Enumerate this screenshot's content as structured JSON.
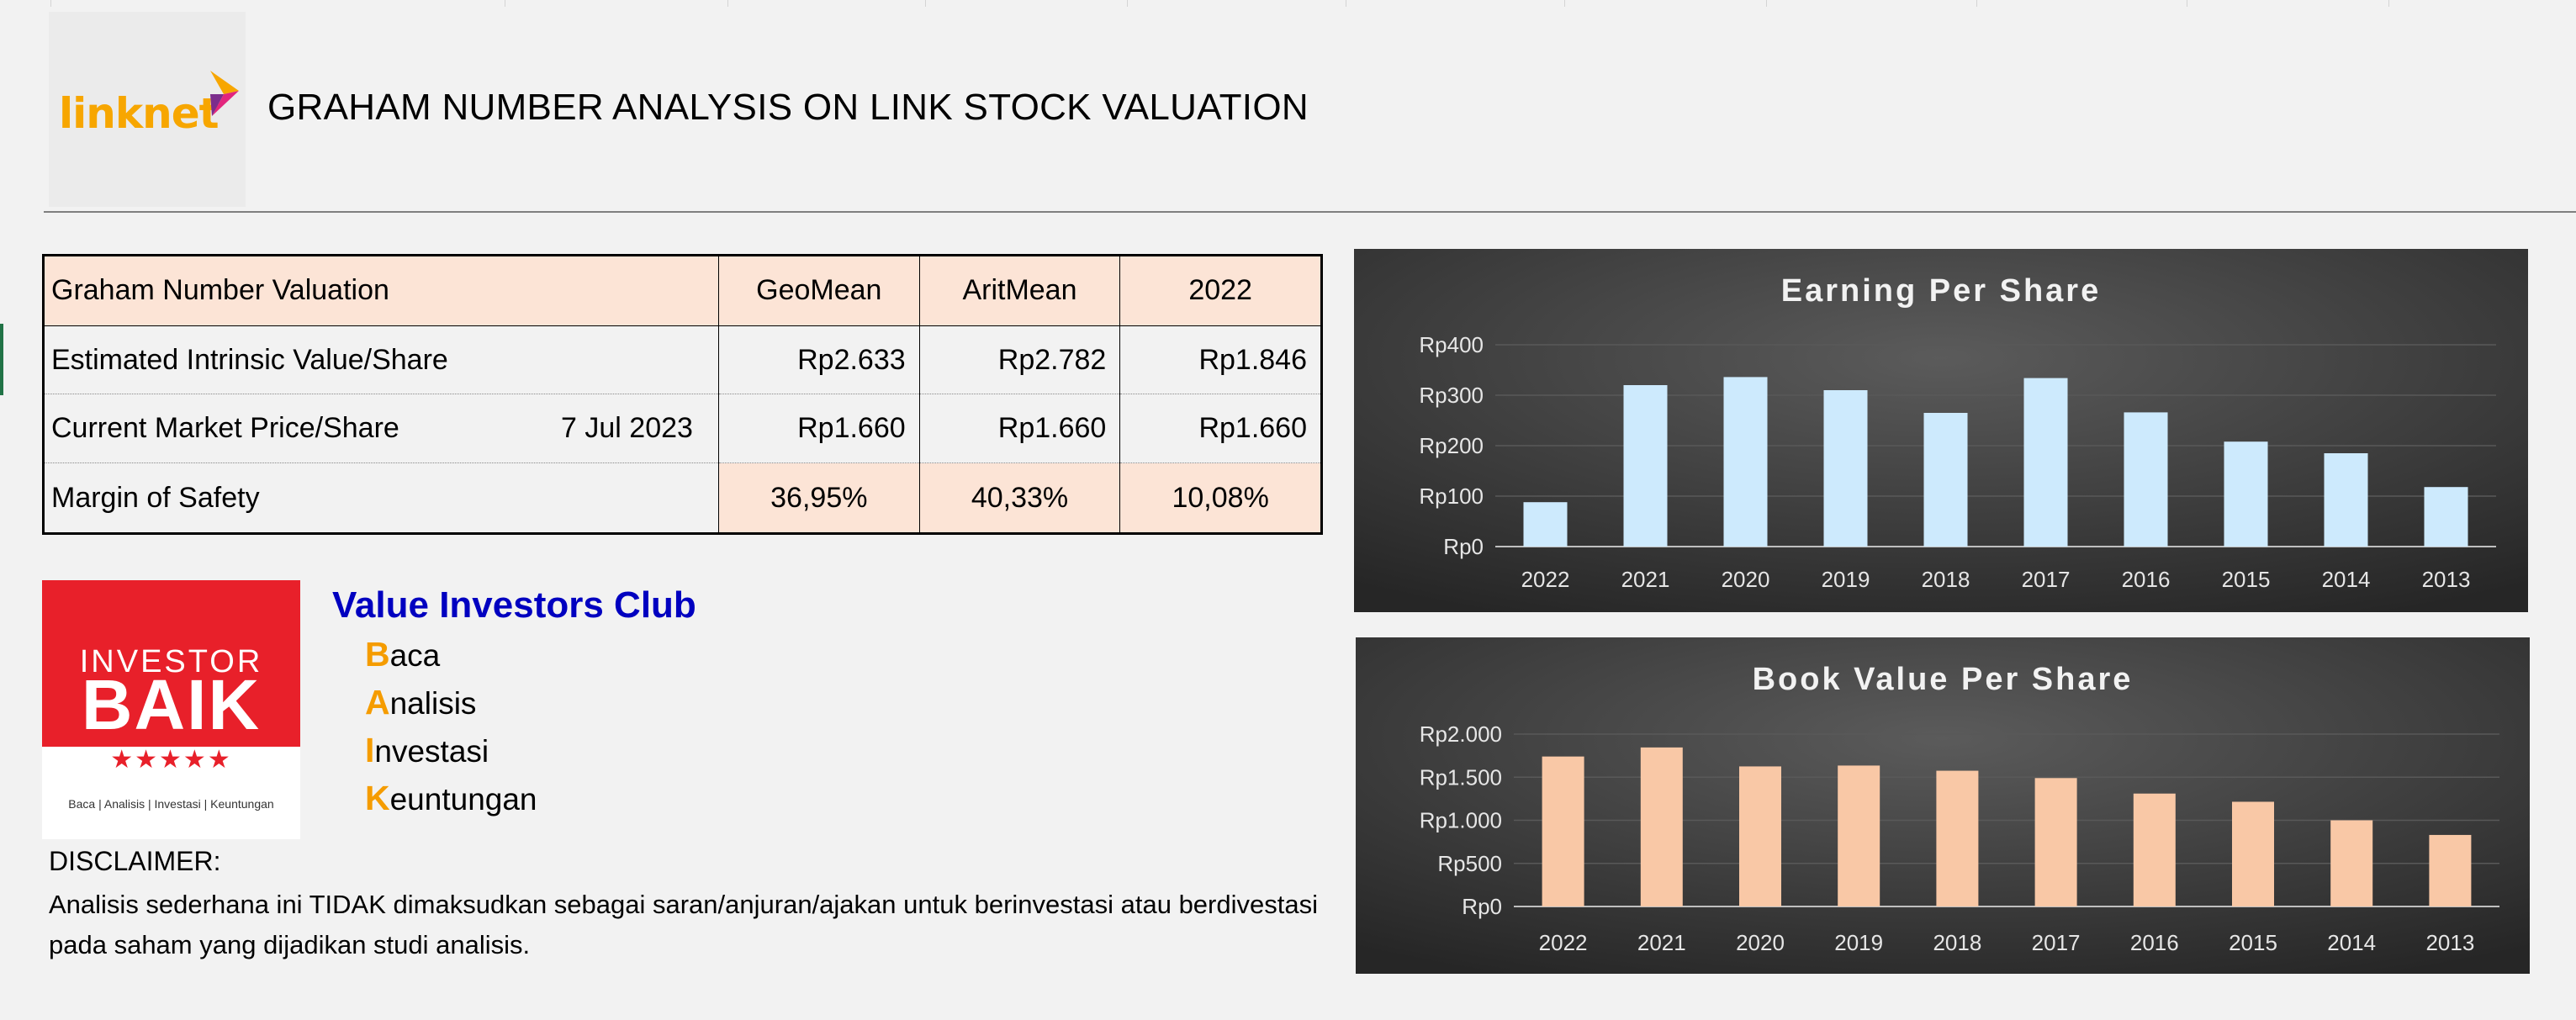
{
  "header": {
    "title": "GRAHAM NUMBER ANALYSIS ON LINK STOCK VALUATION",
    "logo_text": "linknet"
  },
  "valuation_table": {
    "header": [
      "Graham Number Valuation",
      "GeoMean",
      "AritMean",
      "2022"
    ],
    "rows": [
      {
        "label": "Estimated Intrinsic Value/Share",
        "date": "",
        "values": [
          "Rp2.633",
          "Rp2.782",
          "Rp1.846"
        ]
      },
      {
        "label": "Current Market Price/Share",
        "date": "7 Jul 2023",
        "values": [
          "Rp1.660",
          "Rp1.660",
          "Rp1.660"
        ]
      },
      {
        "label": "Margin of Safety",
        "date": "",
        "values": [
          "36,95%",
          "40,33%",
          "10,08%"
        ]
      }
    ]
  },
  "investor_logo": {
    "line1": "INVESTOR",
    "line2": "BAIK",
    "stars": "★★★★★",
    "tagline": "Baca | Analisis | Investasi | Keuntungan"
  },
  "club": {
    "title": "Value Investors Club",
    "items": [
      {
        "initial": "B",
        "rest": "aca"
      },
      {
        "initial": "A",
        "rest": "nalisis"
      },
      {
        "initial": "I",
        "rest": "nvestasi"
      },
      {
        "initial": "K",
        "rest": "euntungan"
      }
    ]
  },
  "disclaimer": {
    "title": "DISCLAIMER:",
    "text": "Analisis sederhana ini TIDAK dimaksudkan sebagai saran/anjuran/ajakan untuk berinvestasi atau berdivestasi pada saham yang dijadikan studi analisis."
  },
  "colors": {
    "accent_orange": "#f59c00",
    "club_blue": "#0000c0",
    "eps_bar": "#cdeafd",
    "bvps_bar": "#f9c8a6",
    "header_fill": "#fce4d6"
  },
  "chart_data": [
    {
      "type": "bar",
      "title": "Earning Per Share",
      "categories": [
        "2022",
        "2021",
        "2020",
        "2019",
        "2018",
        "2017",
        "2016",
        "2015",
        "2014",
        "2013"
      ],
      "values": [
        88,
        320,
        336,
        310,
        265,
        334,
        266,
        208,
        185,
        118
      ],
      "ylim": [
        0,
        400
      ],
      "yticks": [
        0,
        100,
        200,
        300,
        400
      ],
      "ytick_labels": [
        "Rp0",
        "Rp100",
        "Rp200",
        "Rp300",
        "Rp400"
      ],
      "grid": true,
      "legend": "none"
    },
    {
      "type": "bar",
      "title": "Book Value Per Share",
      "categories": [
        "2022",
        "2021",
        "2020",
        "2019",
        "2018",
        "2017",
        "2016",
        "2015",
        "2014",
        "2013"
      ],
      "values": [
        1740,
        1845,
        1625,
        1635,
        1575,
        1490,
        1310,
        1215,
        1000,
        830
      ],
      "ylim": [
        0,
        2000
      ],
      "yticks": [
        0,
        500,
        1000,
        1500,
        2000
      ],
      "ytick_labels": [
        "Rp0",
        "Rp500",
        "Rp1.000",
        "Rp1.500",
        "Rp2.000"
      ],
      "grid": true,
      "legend": "none"
    }
  ]
}
